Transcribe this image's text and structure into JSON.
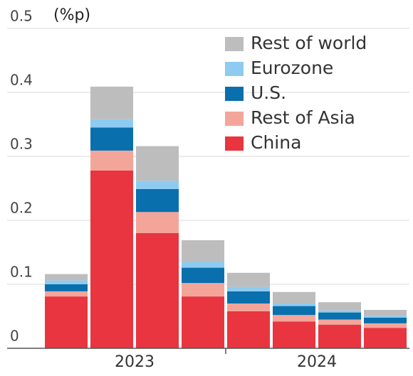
{
  "chart_data": {
    "type": "stacked_bar",
    "y_label": "(%p)",
    "categories": [
      null,
      null,
      null,
      null,
      null,
      null,
      null,
      null
    ],
    "year_labels": [
      "2023",
      "2024"
    ],
    "series": [
      {
        "name": "China",
        "color": "#e8353f",
        "values": [
          0.081,
          0.278,
          0.18,
          0.081,
          0.058,
          0.042,
          0.037,
          0.032
        ]
      },
      {
        "name": "Rest of Asia",
        "color": "#f4a59a",
        "values": [
          0.008,
          0.031,
          0.033,
          0.021,
          0.012,
          0.01,
          0.008,
          0.007
        ]
      },
      {
        "name": "U.S.",
        "color": "#0a6fad",
        "values": [
          0.011,
          0.036,
          0.036,
          0.024,
          0.019,
          0.014,
          0.011,
          0.009
        ]
      },
      {
        "name": "Eurozone",
        "color": "#8ecbf0",
        "values": [
          0.006,
          0.013,
          0.013,
          0.009,
          0.007,
          0.004,
          0.003,
          0.003
        ]
      },
      {
        "name": "Rest of world",
        "color": "#bdbdbd",
        "values": [
          0.01,
          0.051,
          0.054,
          0.034,
          0.022,
          0.018,
          0.013,
          0.009
        ]
      }
    ],
    "ylim": [
      0,
      0.5
    ],
    "yticks": [
      0,
      0.1,
      0.2,
      0.3,
      0.4,
      0.5
    ],
    "grid": true
  }
}
